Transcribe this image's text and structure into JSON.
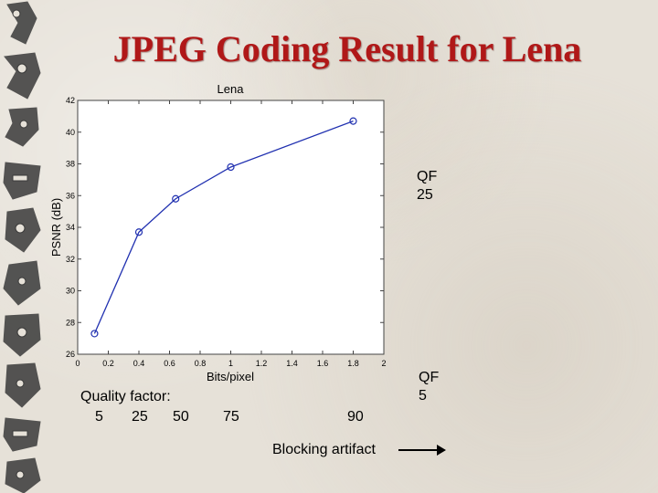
{
  "slide": {
    "title": "JPEG Coding Result for Lena"
  },
  "annotations": {
    "qf_top": [
      "QF",
      "25"
    ],
    "qf_bottom": [
      "QF",
      "5"
    ],
    "quality_factor_label": "Quality factor:",
    "quality_values": [
      "5",
      "25",
      "50",
      "75",
      "90"
    ],
    "blocking_artifact": "Blocking artifact"
  },
  "chart_data": {
    "type": "line",
    "title": "Lena",
    "xlabel": "Bits/pixel",
    "ylabel": "PSNR (dB)",
    "xlim": [
      0,
      2
    ],
    "ylim": [
      26,
      42
    ],
    "xticks": [
      "0",
      "0.2",
      "0.4",
      "0.6",
      "0.8",
      "1",
      "1.2",
      "1.4",
      "1.6",
      "1.8",
      "2"
    ],
    "yticks": [
      "26",
      "28",
      "30",
      "32",
      "34",
      "36",
      "38",
      "40",
      "42"
    ],
    "grid": false,
    "series": [
      {
        "x": [
          0.11,
          0.4,
          0.64,
          1.0,
          1.8
        ],
        "y": [
          27.3,
          33.7,
          35.8,
          37.8,
          40.7
        ],
        "color": "#2030b0",
        "marker": "circle"
      }
    ]
  },
  "colors": {
    "title": "#b01818",
    "series": "#2030b0",
    "plot_bg": "#ffffff"
  }
}
